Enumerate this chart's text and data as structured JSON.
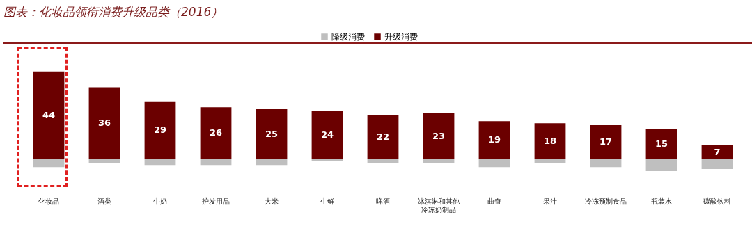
{
  "chart_data": {
    "type": "bar",
    "title": "图表：化妆品领衔消费升级品类（2016）",
    "categories": [
      "化妆品",
      "酒类",
      "牛奶",
      "护发用品",
      "大米",
      "生鲜",
      "啤酒",
      "冰淇淋和其他冷冻奶制品",
      "曲奇",
      "果汁",
      "冷冻预制食品",
      "瓶装水",
      "碳酸饮料"
    ],
    "series": [
      {
        "name": "降级消费",
        "color": "#bfbfbf",
        "values": [
          -4,
          -2,
          -3,
          -3,
          -3,
          -1,
          -2,
          -2,
          -4,
          -2,
          -4,
          -6,
          -5
        ]
      },
      {
        "name": "升级消费",
        "color": "#6b0000",
        "values": [
          44,
          36,
          29,
          26,
          25,
          24,
          22,
          23,
          19,
          18,
          17,
          15,
          7
        ],
        "value_labels": [
          "44",
          "36",
          "29",
          "26",
          "25",
          "24",
          "22",
          "23",
          "19",
          "18",
          "17",
          "15",
          "7"
        ]
      }
    ],
    "stacked": true,
    "legend": "top"
  }
}
